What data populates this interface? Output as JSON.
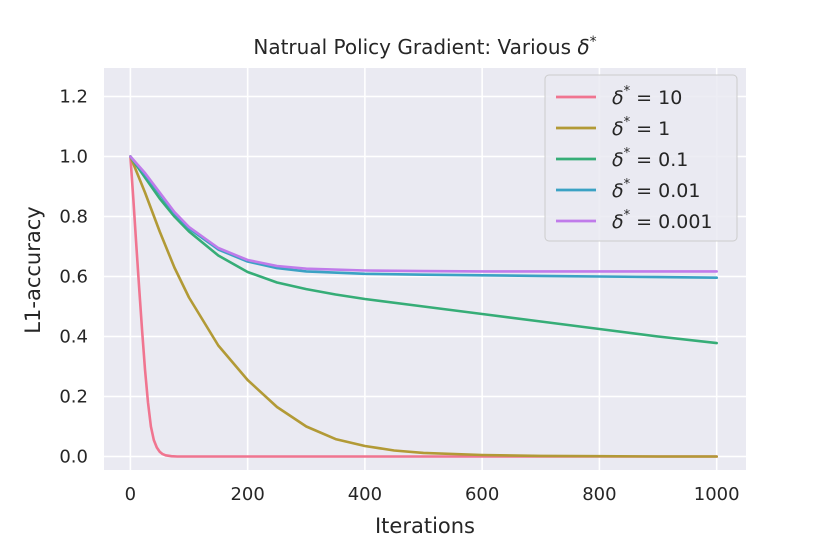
{
  "chart_data": {
    "type": "line",
    "title": "Natrual Policy Gradient: Various",
    "title_symbol": "δ",
    "title_sup": "*",
    "xlabel": "Iterations",
    "ylabel": "L1-accuracy",
    "xlim": [
      -45,
      1050
    ],
    "ylim": [
      -0.045,
      1.295
    ],
    "xticks": [
      0,
      200,
      400,
      600,
      800,
      1000
    ],
    "xtick_labels": [
      "0",
      "200",
      "400",
      "600",
      "800",
      "1000"
    ],
    "yticks": [
      0.0,
      0.2,
      0.4,
      0.6,
      0.8,
      1.0,
      1.2
    ],
    "ytick_labels": [
      "0.0",
      "0.2",
      "0.4",
      "0.6",
      "0.8",
      "1.0",
      "1.2"
    ],
    "grid": true,
    "legend_position": "top-right",
    "series": [
      {
        "name": "δ* = 10",
        "legend_symbol": "δ",
        "legend_sup": "*",
        "legend_value": "= 10",
        "color": "#f07590",
        "x": [
          0,
          5,
          10,
          15,
          20,
          25,
          30,
          35,
          40,
          45,
          50,
          55,
          60,
          70,
          80,
          100,
          200,
          400,
          600,
          800,
          1000
        ],
        "y": [
          1.0,
          0.86,
          0.71,
          0.56,
          0.42,
          0.29,
          0.18,
          0.1,
          0.055,
          0.03,
          0.016,
          0.008,
          0.004,
          0.001,
          0.0,
          0.0,
          0.0,
          0.0,
          0.0,
          0.0,
          0.0
        ]
      },
      {
        "name": "δ* = 1",
        "legend_symbol": "δ",
        "legend_sup": "*",
        "legend_value": "= 1",
        "color": "#b29a36",
        "x": [
          0,
          25,
          50,
          75,
          100,
          150,
          200,
          250,
          300,
          350,
          400,
          450,
          500,
          600,
          700,
          800,
          900,
          1000
        ],
        "y": [
          1.0,
          0.88,
          0.75,
          0.63,
          0.53,
          0.37,
          0.255,
          0.165,
          0.1,
          0.058,
          0.035,
          0.02,
          0.012,
          0.005,
          0.002,
          0.001,
          0.0,
          0.0
        ]
      },
      {
        "name": "δ* = 0.1",
        "legend_symbol": "δ",
        "legend_sup": "*",
        "legend_value": "= 0.1",
        "color": "#36ad77",
        "x": [
          0,
          25,
          50,
          75,
          100,
          150,
          200,
          250,
          300,
          350,
          400,
          500,
          600,
          700,
          800,
          900,
          1000
        ],
        "y": [
          1.0,
          0.93,
          0.86,
          0.8,
          0.75,
          0.67,
          0.615,
          0.58,
          0.558,
          0.54,
          0.525,
          0.5,
          0.475,
          0.45,
          0.425,
          0.4,
          0.378
        ]
      },
      {
        "name": "δ* = 0.01",
        "legend_symbol": "δ",
        "legend_sup": "*",
        "legend_value": "= 0.01",
        "color": "#3ba2c4",
        "x": [
          0,
          25,
          50,
          75,
          100,
          150,
          200,
          250,
          300,
          400,
          500,
          600,
          700,
          800,
          900,
          1000
        ],
        "y": [
          1.0,
          0.94,
          0.875,
          0.81,
          0.76,
          0.69,
          0.65,
          0.628,
          0.617,
          0.609,
          0.606,
          0.604,
          0.602,
          0.6,
          0.598,
          0.596
        ]
      },
      {
        "name": "δ* = 0.001",
        "legend_symbol": "δ",
        "legend_sup": "*",
        "legend_value": "= 0.001",
        "color": "#c07bea",
        "x": [
          0,
          25,
          50,
          75,
          100,
          150,
          200,
          250,
          300,
          400,
          500,
          600,
          700,
          800,
          900,
          1000
        ],
        "y": [
          1.0,
          0.945,
          0.88,
          0.815,
          0.765,
          0.695,
          0.655,
          0.635,
          0.626,
          0.62,
          0.618,
          0.617,
          0.617,
          0.617,
          0.617,
          0.617
        ]
      }
    ]
  }
}
